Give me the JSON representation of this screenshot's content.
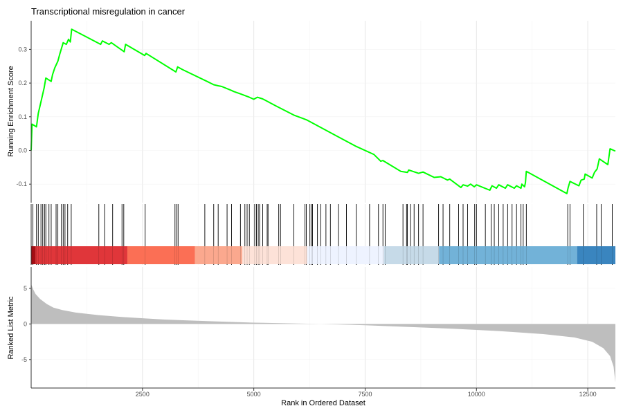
{
  "chart_data": {
    "type": "line",
    "title": "Transcriptional misregulation in cancer",
    "xlabel": "Rank in Ordered Dataset",
    "x_range": [
      0,
      13120
    ],
    "x_ticks": [
      2500,
      5000,
      7500,
      10000,
      12500
    ],
    "grid": true,
    "legend": "none",
    "panels": [
      {
        "name": "running_enrichment",
        "ylabel": "Running Enrichment Score",
        "y_range": [
          -0.155,
          0.385
        ],
        "y_ticks": [
          -0.1,
          0.0,
          0.1,
          0.2,
          0.3
        ],
        "line_color": "#00FF00",
        "points": [
          [
            0,
            0.0
          ],
          [
            20,
            0.078
          ],
          [
            120,
            0.07
          ],
          [
            160,
            0.11
          ],
          [
            230,
            0.15
          ],
          [
            290,
            0.185
          ],
          [
            330,
            0.215
          ],
          [
            450,
            0.205
          ],
          [
            480,
            0.225
          ],
          [
            530,
            0.245
          ],
          [
            600,
            0.265
          ],
          [
            640,
            0.285
          ],
          [
            720,
            0.32
          ],
          [
            790,
            0.315
          ],
          [
            840,
            0.33
          ],
          [
            880,
            0.322
          ],
          [
            910,
            0.36
          ],
          [
            1560,
            0.315
          ],
          [
            1600,
            0.325
          ],
          [
            1750,
            0.315
          ],
          [
            1800,
            0.32
          ],
          [
            2090,
            0.293
          ],
          [
            2120,
            0.315
          ],
          [
            2550,
            0.282
          ],
          [
            2580,
            0.288
          ],
          [
            3250,
            0.233
          ],
          [
            3290,
            0.248
          ],
          [
            3400,
            0.24
          ],
          [
            3950,
            0.205
          ],
          [
            4100,
            0.195
          ],
          [
            4200,
            0.192
          ],
          [
            4280,
            0.19
          ],
          [
            4500,
            0.178
          ],
          [
            4550,
            0.175
          ],
          [
            4700,
            0.168
          ],
          [
            4900,
            0.158
          ],
          [
            5000,
            0.152
          ],
          [
            5080,
            0.158
          ],
          [
            5200,
            0.153
          ],
          [
            5500,
            0.132
          ],
          [
            5900,
            0.105
          ],
          [
            6100,
            0.095
          ],
          [
            6200,
            0.09
          ],
          [
            6900,
            0.04
          ],
          [
            7300,
            0.012
          ],
          [
            7700,
            -0.012
          ],
          [
            7850,
            -0.032
          ],
          [
            7900,
            -0.03
          ],
          [
            8050,
            -0.042
          ],
          [
            8300,
            -0.062
          ],
          [
            8450,
            -0.065
          ],
          [
            8480,
            -0.058
          ],
          [
            8700,
            -0.068
          ],
          [
            8800,
            -0.064
          ],
          [
            9050,
            -0.08
          ],
          [
            9200,
            -0.078
          ],
          [
            9350,
            -0.088
          ],
          [
            9400,
            -0.085
          ],
          [
            9650,
            -0.11
          ],
          [
            9700,
            -0.102
          ],
          [
            9800,
            -0.106
          ],
          [
            9870,
            -0.1
          ],
          [
            9950,
            -0.108
          ],
          [
            10000,
            -0.102
          ],
          [
            10300,
            -0.118
          ],
          [
            10350,
            -0.105
          ],
          [
            10450,
            -0.112
          ],
          [
            10500,
            -0.102
          ],
          [
            10650,
            -0.112
          ],
          [
            10700,
            -0.102
          ],
          [
            10850,
            -0.112
          ],
          [
            10900,
            -0.105
          ],
          [
            11000,
            -0.112
          ],
          [
            11020,
            -0.1
          ],
          [
            11080,
            -0.108
          ],
          [
            11100,
            -0.095
          ],
          [
            11120,
            -0.062
          ],
          [
            12030,
            -0.128
          ],
          [
            12060,
            -0.11
          ],
          [
            12100,
            -0.092
          ],
          [
            12300,
            -0.105
          ],
          [
            12350,
            -0.088
          ],
          [
            12420,
            -0.085
          ],
          [
            12440,
            -0.07
          ],
          [
            12600,
            -0.082
          ],
          [
            12650,
            -0.065
          ],
          [
            12710,
            -0.055
          ],
          [
            12760,
            -0.025
          ],
          [
            12950,
            -0.042
          ],
          [
            13000,
            0.005
          ],
          [
            13120,
            -0.002
          ]
        ]
      },
      {
        "name": "gene_hits",
        "hit_color": "#000000",
        "hits": [
          40,
          120,
          160,
          220,
          260,
          300,
          330,
          400,
          450,
          560,
          600,
          680,
          720,
          760,
          820,
          900,
          1520,
          1650,
          1830,
          2040,
          2080,
          2560,
          3230,
          3270,
          3300,
          3900,
          4100,
          4200,
          4400,
          4500,
          4700,
          4800,
          4850,
          4900,
          5020,
          5060,
          5100,
          5130,
          5200,
          5300,
          5320,
          5560,
          5600,
          5900,
          6150,
          6180,
          6260,
          6300,
          6320,
          6430,
          6500,
          6620,
          6720,
          6900,
          7080,
          7300,
          7600,
          7800,
          7900,
          7950,
          8350,
          8430,
          8450,
          8520,
          8600,
          8700,
          8800,
          9150,
          9250,
          9400,
          9600,
          9700,
          9800,
          9960,
          10000,
          10200,
          10330,
          10400,
          10500,
          10600,
          10700,
          10800,
          10900,
          11000,
          11050,
          11120,
          12050,
          12100,
          12400,
          12700,
          12800,
          13050
        ]
      },
      {
        "name": "rank_color_bar",
        "segments": [
          {
            "end": 100,
            "color": "#A50F15"
          },
          {
            "end": 2160,
            "color": "#E0363A"
          },
          {
            "end": 3680,
            "color": "#FB6F55"
          },
          {
            "end": 4740,
            "color": "#FBA88E"
          },
          {
            "end": 6200,
            "color": "#FDE2D8"
          },
          {
            "end": 7920,
            "color": "#EEF3FF"
          },
          {
            "end": 9160,
            "color": "#C6DAE8"
          },
          {
            "end": 12260,
            "color": "#72B2D8"
          },
          {
            "end": 13120,
            "color": "#3A85BF"
          }
        ]
      },
      {
        "name": "ranked_list_metric",
        "ylabel": "Ranked List Metric",
        "y_range": [
          -9.0,
          8.0
        ],
        "y_ticks": [
          -5,
          0,
          5
        ],
        "fill_color": "#BEBEBE",
        "metric_points": [
          [
            0,
            5.6
          ],
          [
            50,
            4.8
          ],
          [
            100,
            4.2
          ],
          [
            200,
            3.5
          ],
          [
            350,
            2.8
          ],
          [
            500,
            2.3
          ],
          [
            700,
            1.95
          ],
          [
            1000,
            1.6
          ],
          [
            1500,
            1.25
          ],
          [
            2000,
            1.0
          ],
          [
            2500,
            0.8
          ],
          [
            3000,
            0.62
          ],
          [
            4000,
            0.38
          ],
          [
            5000,
            0.18
          ],
          [
            6000,
            0.06
          ],
          [
            6500,
            0.0
          ],
          [
            7500,
            -0.18
          ],
          [
            8500,
            -0.42
          ],
          [
            9500,
            -0.68
          ],
          [
            10500,
            -1.0
          ],
          [
            11500,
            -1.42
          ],
          [
            12200,
            -1.9
          ],
          [
            12600,
            -2.5
          ],
          [
            12850,
            -3.4
          ],
          [
            13000,
            -4.5
          ],
          [
            13080,
            -6.0
          ],
          [
            13120,
            -8.2
          ]
        ]
      }
    ]
  }
}
